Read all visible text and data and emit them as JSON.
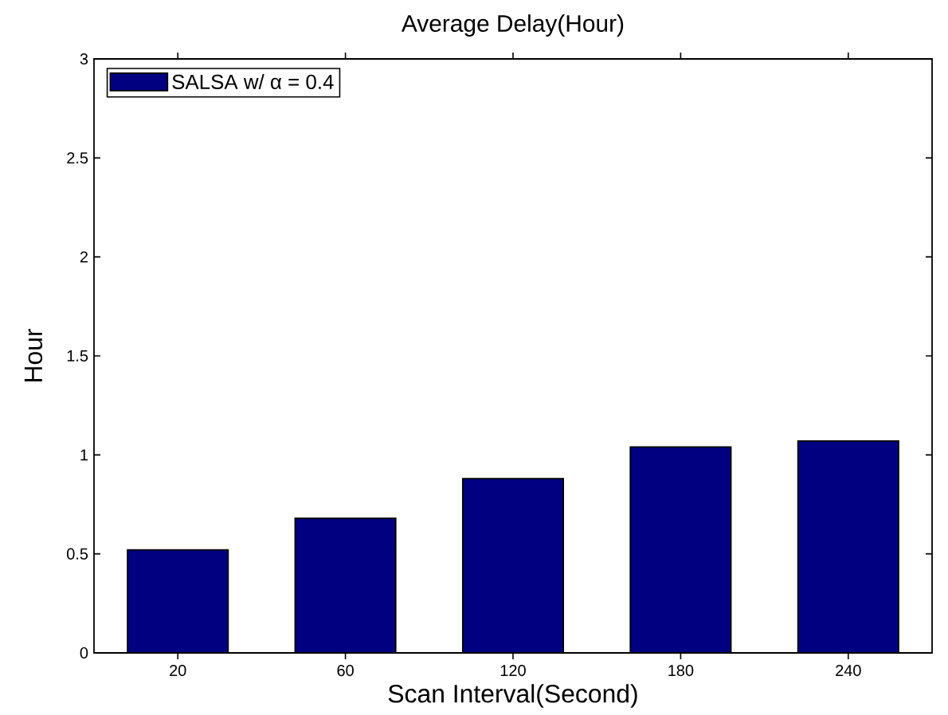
{
  "chart_data": {
    "type": "bar",
    "title": "Average Delay(Hour)",
    "xlabel": "Scan Interval(Second)",
    "ylabel": "Hour",
    "categories": [
      "20",
      "60",
      "120",
      "180",
      "240"
    ],
    "series": [
      {
        "name": "SALSA w/ α = 0.4",
        "color": "#000080",
        "values": [
          0.52,
          0.68,
          0.88,
          1.04,
          1.07
        ]
      }
    ],
    "ylim": [
      0,
      3
    ],
    "yticks": [
      0,
      0.5,
      1,
      1.5,
      2,
      2.5,
      3
    ],
    "legend": "top left"
  }
}
